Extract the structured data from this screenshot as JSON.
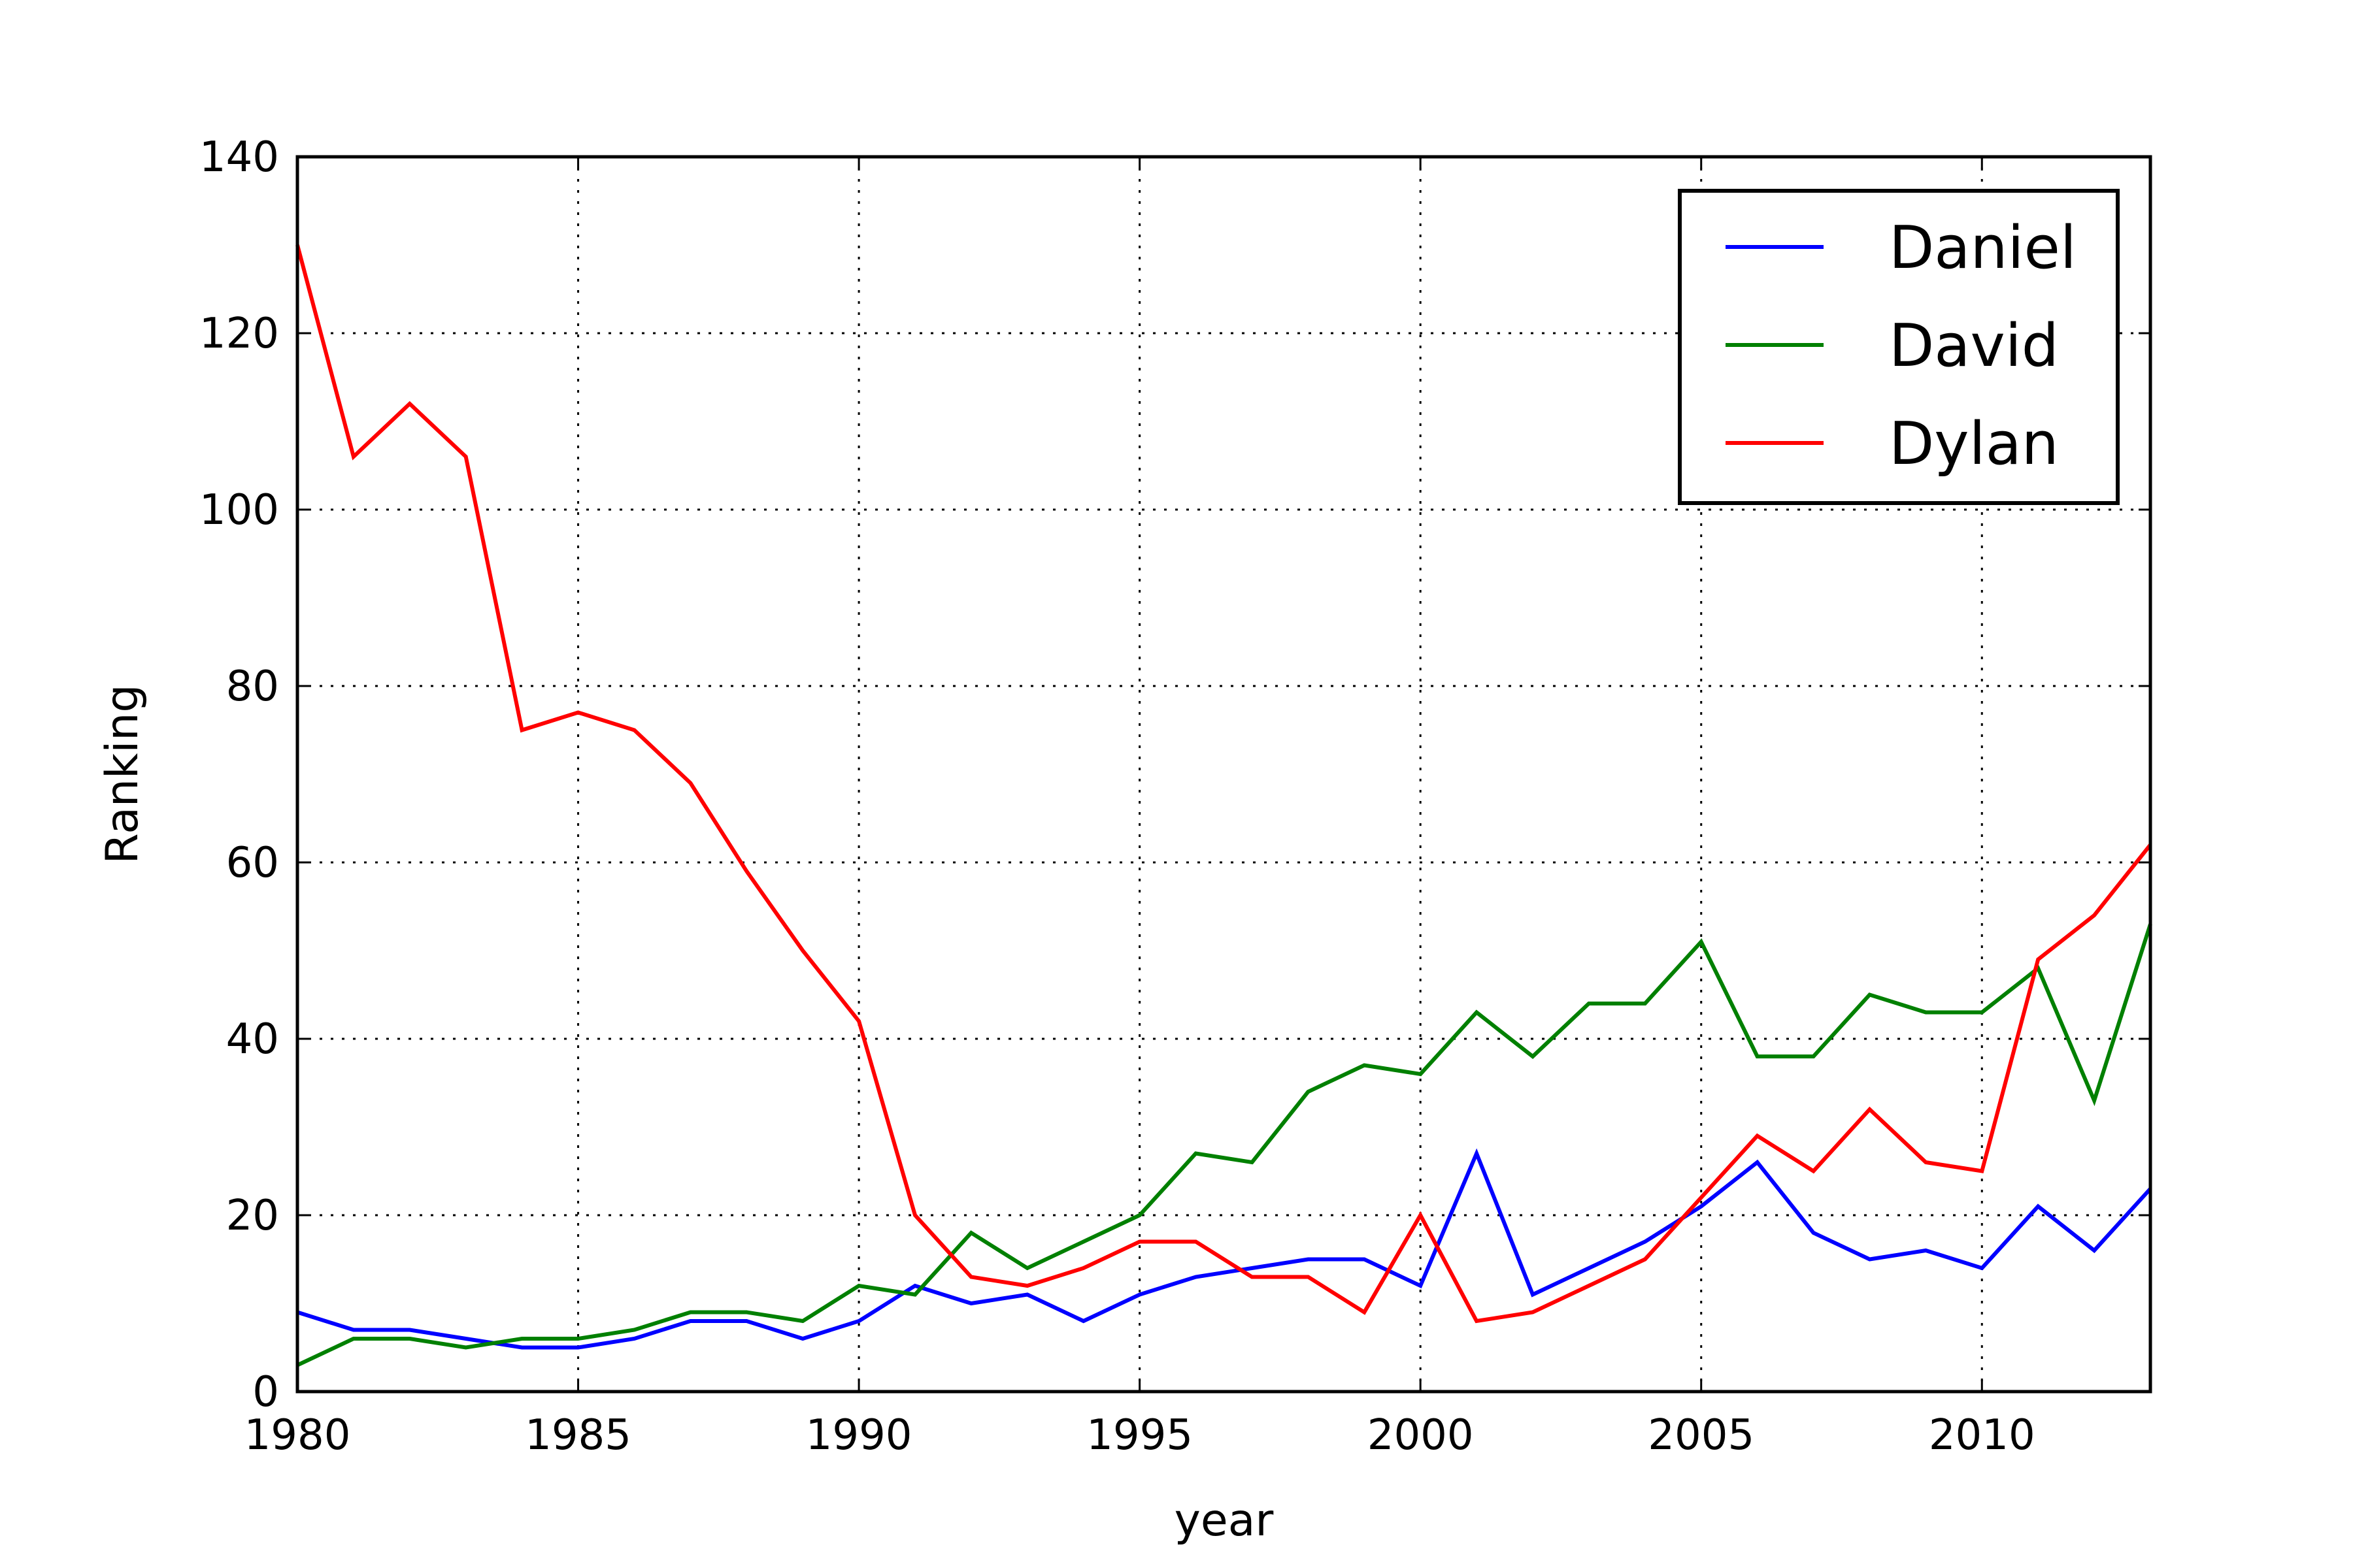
{
  "chart_data": {
    "type": "line",
    "xlabel": "year",
    "ylabel": "Ranking",
    "xlim": [
      1980,
      2013
    ],
    "ylim": [
      0,
      140
    ],
    "xticks": [
      "1980",
      "1985",
      "1990",
      "1995",
      "2000",
      "2005",
      "2010"
    ],
    "yticks": [
      "0",
      "20",
      "40",
      "60",
      "80",
      "100",
      "120",
      "140"
    ],
    "grid": true,
    "legend_position": "top-right",
    "x": [
      1980,
      1981,
      1982,
      1983,
      1984,
      1985,
      1986,
      1987,
      1988,
      1989,
      1990,
      1991,
      1992,
      1993,
      1994,
      1995,
      1996,
      1997,
      1998,
      1999,
      2000,
      2001,
      2002,
      2003,
      2004,
      2005,
      2006,
      2007,
      2008,
      2009,
      2010,
      2011,
      2012,
      2013
    ],
    "series": [
      {
        "name": "Daniel",
        "color": "#0000ff",
        "values": [
          9,
          7,
          7,
          6,
          5,
          5,
          6,
          8,
          8,
          6,
          8,
          12,
          10,
          11,
          8,
          11,
          13,
          14,
          15,
          15,
          12,
          27,
          11,
          14,
          17,
          21,
          26,
          18,
          15,
          16,
          14,
          21,
          16,
          23
        ]
      },
      {
        "name": "David",
        "color": "#008000",
        "values": [
          3,
          6,
          6,
          5,
          6,
          6,
          7,
          9,
          9,
          8,
          12,
          11,
          18,
          14,
          17,
          20,
          27,
          26,
          34,
          37,
          36,
          43,
          38,
          44,
          44,
          51,
          38,
          38,
          45,
          43,
          43,
          48,
          33,
          53
        ]
      },
      {
        "name": "Dylan",
        "color": "#ff0000",
        "values": [
          130,
          106,
          112,
          106,
          75,
          77,
          75,
          69,
          59,
          50,
          42,
          20,
          13,
          12,
          14,
          17,
          17,
          13,
          13,
          9,
          20,
          8,
          9,
          12,
          15,
          22,
          29,
          25,
          32,
          26,
          25,
          49,
          54,
          62
        ]
      }
    ]
  }
}
